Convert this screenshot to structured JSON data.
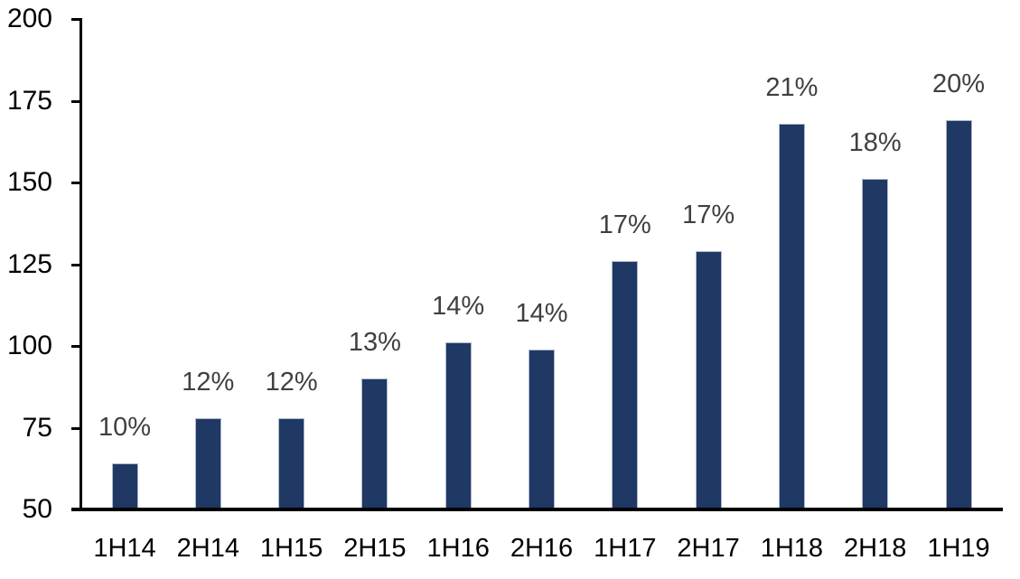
{
  "chart_data": {
    "type": "bar",
    "title": "",
    "xlabel": "",
    "ylabel": "",
    "categories": [
      "1H14",
      "2H14",
      "1H15",
      "2H15",
      "1H16",
      "2H16",
      "1H17",
      "2H17",
      "1H18",
      "2H18",
      "1H19"
    ],
    "values": [
      64,
      78,
      78,
      90,
      101,
      99,
      126,
      129,
      168,
      151,
      169
    ],
    "data_labels": [
      "10%",
      "12%",
      "12%",
      "13%",
      "14%",
      "14%",
      "17%",
      "17%",
      "21%",
      "18%",
      "20%"
    ],
    "ylim": [
      50,
      200
    ],
    "yticks": [
      50,
      75,
      100,
      125,
      150,
      175,
      200
    ],
    "grid": false,
    "legend": false,
    "colors": {
      "bar_fill": "#1F3864",
      "bar_border": "#AEB8CC",
      "axis": "#000000",
      "axis_tick_label": "#000000",
      "data_label": "#404040",
      "background": "#FFFFFF"
    }
  }
}
